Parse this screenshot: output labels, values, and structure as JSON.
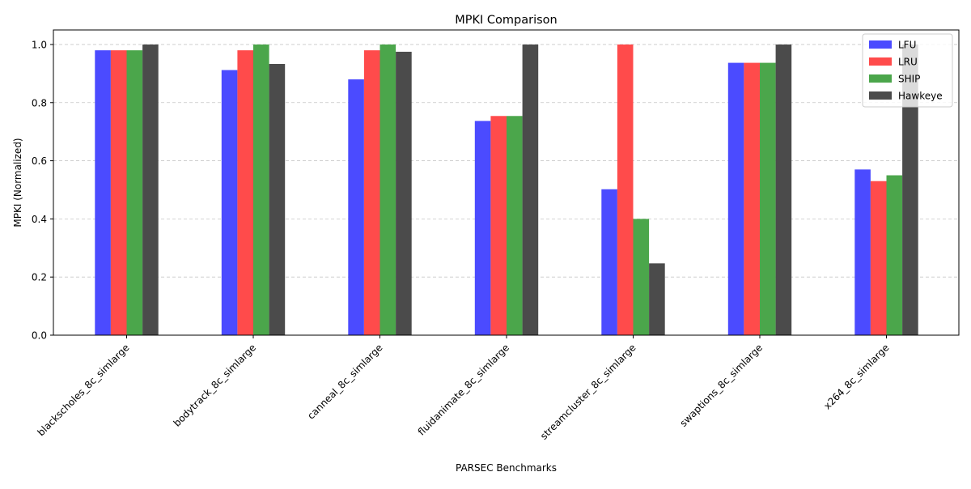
{
  "chart_data": {
    "type": "bar",
    "title": "MPKI Comparison",
    "xlabel": "PARSEC Benchmarks",
    "ylabel": "MPKI (Normalized)",
    "ylim": [
      0,
      1.05
    ],
    "yticks": [
      "0.0",
      "0.2",
      "0.4",
      "0.6",
      "0.8",
      "1.0"
    ],
    "grid": "y-dashed",
    "legend_position": "top-right",
    "categories": [
      "blackscholes_8c_simlarge",
      "bodytrack_8c_simlarge",
      "canneal_8c_simlarge",
      "fluidanimate_8c_simlarge",
      "streamcluster_8c_simlarge",
      "swaptions_8c_simlarge",
      "x264_8c_simlarge"
    ],
    "series": [
      {
        "name": "LFU",
        "color": "#4b4bff",
        "values": [
          0.98,
          0.912,
          0.88,
          0.737,
          0.502,
          0.937,
          0.57
        ]
      },
      {
        "name": "LRU",
        "color": "#ff4b4b",
        "values": [
          0.98,
          0.98,
          0.98,
          0.754,
          1.0,
          0.937,
          0.53
        ]
      },
      {
        "name": "SHIP",
        "color": "#4ba64b",
        "values": [
          0.98,
          1.0,
          1.0,
          0.754,
          0.4,
          0.937,
          0.55
        ]
      },
      {
        "name": "Hawkeye",
        "color": "#4b4b4b",
        "values": [
          1.0,
          0.933,
          0.975,
          1.0,
          0.247,
          1.0,
          1.0
        ]
      }
    ]
  }
}
